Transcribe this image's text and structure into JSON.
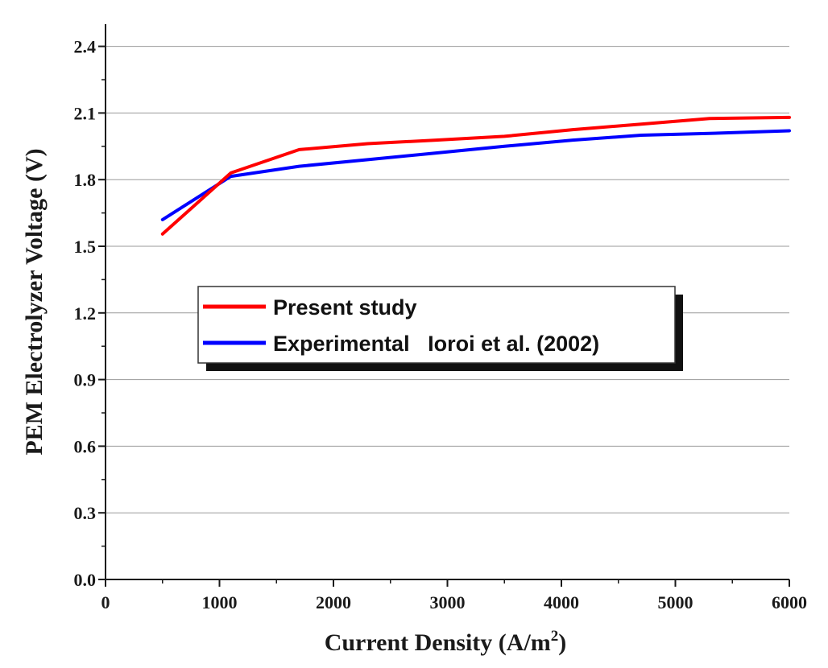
{
  "chart_data": {
    "type": "line",
    "xlabel": "Current Density (A/m",
    "xlabel_sup": "2",
    "xlabel_tail": ")",
    "ylabel": "PEM Electrolyzer Voltage (V)",
    "xlim": [
      0,
      6000
    ],
    "ylim": [
      0,
      2.5
    ],
    "x_ticks": [
      0,
      1000,
      2000,
      3000,
      4000,
      5000,
      6000
    ],
    "x_tick_labels": [
      "0",
      "1000",
      "2000",
      "3000",
      "4000",
      "5000",
      "6000"
    ],
    "y_ticks": [
      0,
      0.3,
      0.6,
      0.9,
      1.2,
      1.5,
      1.8,
      2.1,
      2.4
    ],
    "y_tick_labels": [
      "0.0",
      "0.3",
      "0.6",
      "0.9",
      "1.2",
      "1.5",
      "1.8",
      "2.1",
      "2.4"
    ],
    "grid": "horizontal",
    "legend_position": "center-left",
    "series": [
      {
        "name": "Present study",
        "color": "#ff0000",
        "x": [
          500,
          1100,
          1700,
          2300,
          2900,
          3500,
          4100,
          4700,
          5300,
          6000
        ],
        "y": [
          1.555,
          1.83,
          1.935,
          1.962,
          1.978,
          1.995,
          2.025,
          2.05,
          2.075,
          2.08
        ]
      },
      {
        "name": "Experimental   Ioroi et al. (2002)",
        "color": "#0000ff",
        "x": [
          500,
          1100,
          1700,
          2300,
          2900,
          3500,
          4100,
          4700,
          5300,
          6000
        ],
        "y": [
          1.62,
          1.815,
          1.86,
          1.89,
          1.92,
          1.95,
          1.978,
          2.0,
          2.008,
          2.02
        ]
      }
    ]
  }
}
